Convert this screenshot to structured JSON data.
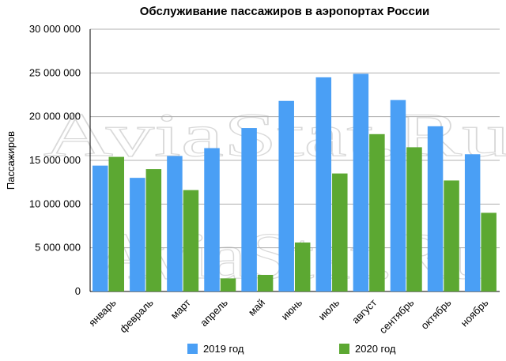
{
  "chart_data": {
    "type": "bar",
    "title": "Обслуживание пассажиров в аэропортах России",
    "ylabel": "Пассажиров",
    "xlabel": "",
    "ylim": [
      0,
      30000000
    ],
    "yticks": [
      0,
      5000000,
      10000000,
      15000000,
      20000000,
      25000000,
      30000000
    ],
    "ytick_labels": [
      "0",
      "5 000 000",
      "10 000 000",
      "15 000 000",
      "20 000 000",
      "25 000 000",
      "30 000 000"
    ],
    "categories": [
      "январь",
      "февраль",
      "март",
      "апрель",
      "май",
      "июнь",
      "июль",
      "август",
      "сентябрь",
      "октябрь",
      "ноябрь"
    ],
    "series": [
      {
        "name": "2019 год",
        "color": "#4a9ff5",
        "values": [
          14400000,
          13000000,
          15500000,
          16400000,
          18700000,
          21800000,
          24500000,
          24900000,
          21900000,
          18900000,
          15700000
        ]
      },
      {
        "name": "2020 год",
        "color": "#5ca832",
        "values": [
          15400000,
          14000000,
          11600000,
          1500000,
          1900000,
          5600000,
          13500000,
          18000000,
          16500000,
          12700000,
          9000000
        ]
      }
    ],
    "grid": true,
    "legend_position": "bottom"
  },
  "watermark": "AviaStat.Ru"
}
